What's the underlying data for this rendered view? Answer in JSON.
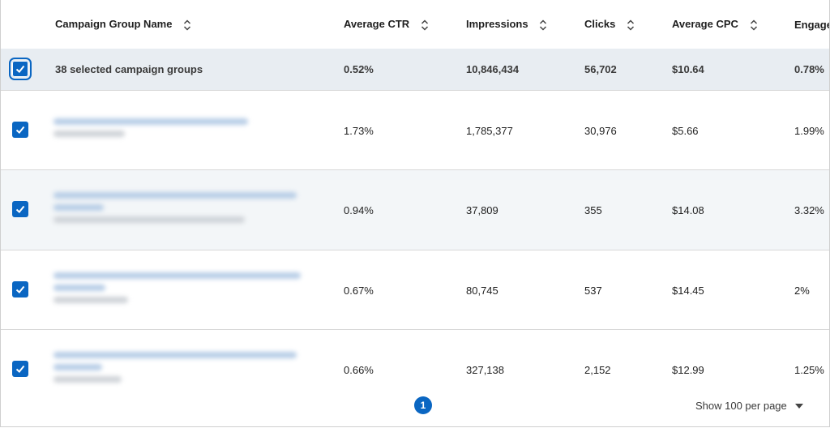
{
  "header": {
    "name": "Campaign Group Name",
    "ctr": "Average CTR",
    "impressions": "Impressions",
    "clicks": "Clicks",
    "cpc": "Average CPC",
    "engagement": "Engage"
  },
  "summary": {
    "label": "38 selected campaign groups",
    "ctr": "0.52%",
    "impressions": "10,846,434",
    "clicks": "56,702",
    "cpc": "$10.64",
    "engagement": "0.78%"
  },
  "rows": [
    {
      "ctr": "1.73%",
      "impressions": "1,785,377",
      "clicks": "30,976",
      "cpc": "$5.66",
      "engagement": "1.99%"
    },
    {
      "ctr": "0.94%",
      "impressions": "37,809",
      "clicks": "355",
      "cpc": "$14.08",
      "engagement": "3.32%"
    },
    {
      "ctr": "0.67%",
      "impressions": "80,745",
      "clicks": "537",
      "cpc": "$14.45",
      "engagement": "2%"
    },
    {
      "ctr": "0.66%",
      "impressions": "327,138",
      "clicks": "2,152",
      "cpc": "$12.99",
      "engagement": "1.25%"
    }
  ],
  "pagination": {
    "current_page": "1",
    "per_page_label": "Show 100 per page"
  },
  "colors": {
    "accent": "#0a66c2",
    "summary_bg": "#e8edf2",
    "alt_row_bg": "#f3f6f8"
  },
  "icons": {
    "sort": "sort-icon",
    "check": "check-icon",
    "dropdown": "chevron-down-icon"
  }
}
